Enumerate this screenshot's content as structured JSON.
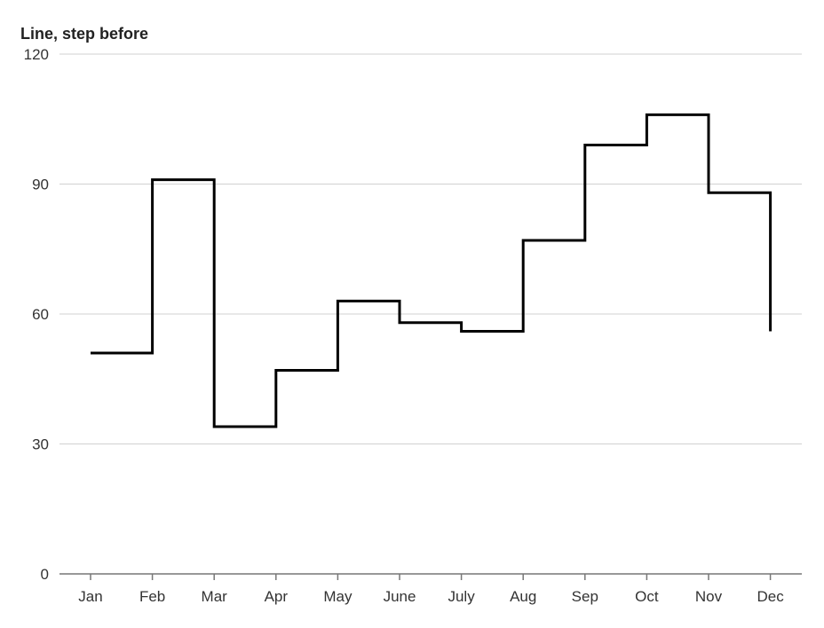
{
  "chart_data": {
    "type": "line",
    "title": "Line, step before",
    "interpolation": "step-before",
    "categories": [
      "Jan",
      "Feb",
      "Mar",
      "Apr",
      "May",
      "June",
      "July",
      "Aug",
      "Sep",
      "Oct",
      "Nov",
      "Dec"
    ],
    "series": [
      {
        "values": [
          51,
          91,
          34,
          47,
          63,
          58,
          56,
          77,
          99,
          106,
          88,
          56
        ]
      }
    ],
    "ylim": [
      0,
      120
    ],
    "yticks": [
      0,
      30,
      60,
      90,
      120
    ],
    "grid": true,
    "colors": {
      "line": "#000000",
      "grid": "#d0d0d0",
      "axis": "#777777",
      "text": "#333333"
    }
  }
}
